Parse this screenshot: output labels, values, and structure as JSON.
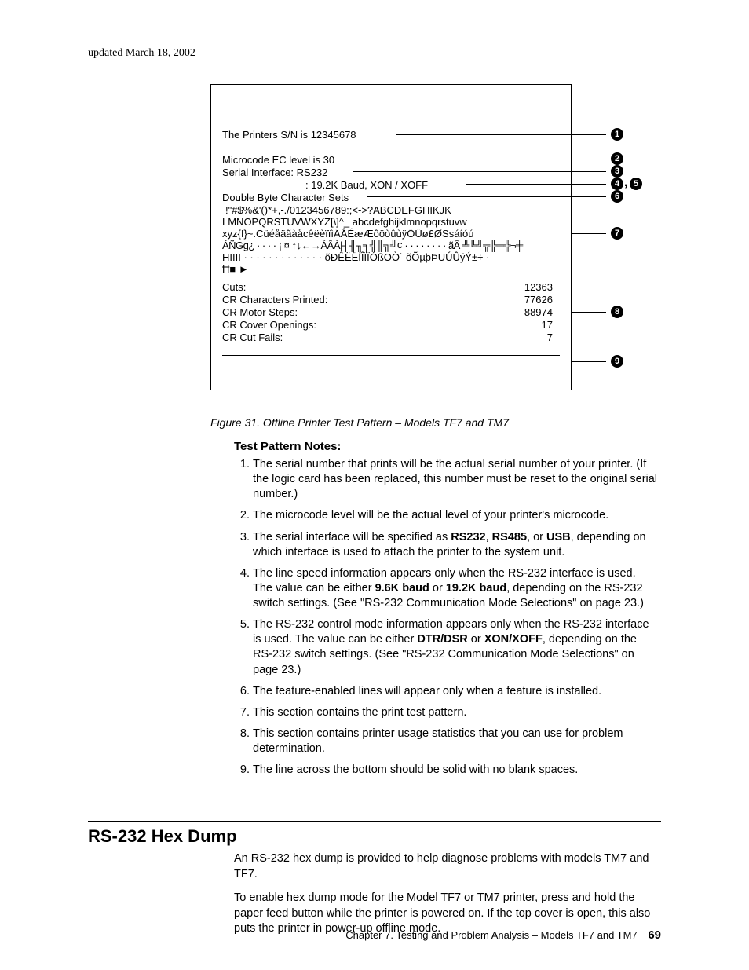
{
  "header": {
    "updated": "updated March 18, 2002"
  },
  "figure": {
    "lines": {
      "sn": "The Printers S/N is 12345678",
      "ec": "Microcode EC level is 30",
      "iface": "Serial Interface: RS232",
      "baud": ": 19.2K Baud, XON / XOFF",
      "dbcs": "Double Byte Character Sets",
      "row1": "!\"#$%&'()*+,-./0123456789:;<->?ABCDEFGHIKJK",
      "row2": "LMNOPQRSTUVWXYZ[\\]^_ abcdefghijklmnopqrstuvw",
      "row3": "xyz{I}~.CüéåäãàåcêëèïïìÄÅÉæÆôöòûùÿÖÜø£ØSsáíóú",
      "row4": "ÁÑGg¿ · · · · ¡ ¤ ↑↓←→ÁÂÀ|┤╢╖╕╣║╗╝¢ · · · · · · · · ãÂ  ╩╚╝╦╠═╬¬╪",
      "row5": "HIIII · · · · · · · · · · · · · õÐÊËËÍÎÏÏÓßOÒ˙ õÕµþÞUÚÛýÝ±÷ ·",
      "row6": "Ħ■  ►",
      "stats": {
        "cuts_label": "Cuts:",
        "cuts_val": "12363",
        "chars_label": "CR Characters Printed:",
        "chars_val": "77626",
        "steps_label": "CR Motor Steps:",
        "steps_val": "88974",
        "covers_label": "CR Cover Openings:",
        "covers_val": "17",
        "fails_label": "CR Cut Fails:",
        "fails_val": "7"
      }
    },
    "caption": "Figure 31. Offline Printer Test Pattern – Models TF7 and TM7",
    "annotations": [
      "1",
      "2",
      "3",
      "4",
      "5",
      "6",
      "7",
      "8",
      "9"
    ]
  },
  "notes": {
    "heading": "Test Pattern Notes:",
    "items": [
      "The serial number that prints will be the actual serial number of your printer. (If the logic card has been replaced, this number must be reset to the original serial number.)",
      "The microcode level will be the actual level of your printer's microcode.",
      "The serial interface will be specified as <b>RS232</b>, <b>RS485</b>, or <b>USB</b>, depending on which interface is used to attach the printer to the system unit.",
      "The line speed information appears only when the RS-232 interface is used. The value can be either <b>9.6K baud</b> or <b>19.2K baud</b>, depending on the RS-232 switch settings. (See \"RS-232 Communication Mode Selections\" on page 23.)",
      "The RS-232 control mode information appears only when the RS-232 interface is used. The value can be either <b>DTR/DSR</b> or <b>XON/XOFF</b>, depending on the RS-232 switch settings. (See \"RS-232 Communication Mode Selections\" on page 23.)",
      "The feature-enabled lines will appear only when a feature is installed.",
      "This section contains the print test pattern.",
      "This section contains printer usage statistics that you can use for problem determination.",
      "The line across the bottom should be solid with no blank spaces."
    ]
  },
  "section": {
    "title": "RS-232 Hex Dump",
    "p1": "An RS-232 hex dump is provided to help diagnose problems with models TM7 and TF7.",
    "p2": "To enable hex dump mode for the Model TF7 or TM7 printer, press and hold the paper feed button while the printer is powered on. If the top cover is open, this also puts the printer in power-up offline mode."
  },
  "footer": {
    "chapter": "Chapter 7. Testing and Problem Analysis – Models TF7 and TM7",
    "page": "69"
  },
  "style": {
    "bg": "#ffffff"
  }
}
